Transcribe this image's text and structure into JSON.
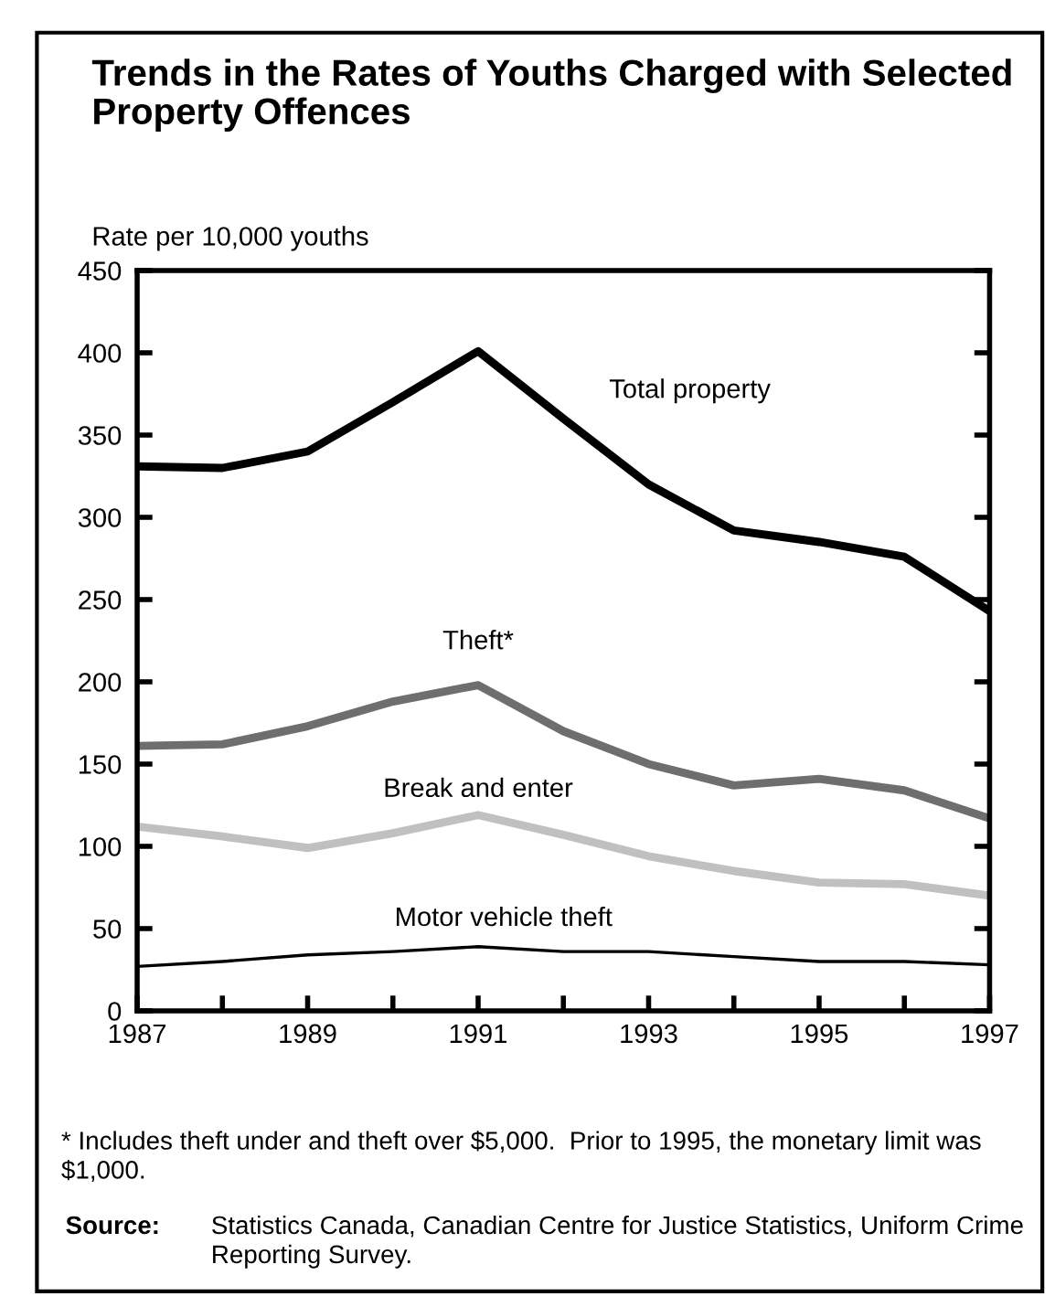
{
  "chart_data": {
    "type": "line",
    "title": "Trends in the Rates of Youths Charged with Selected Property Offences",
    "ylabel": "Rate per 10,000 youths",
    "x": [
      1987,
      1988,
      1989,
      1990,
      1991,
      1992,
      1993,
      1994,
      1995,
      1996,
      1997
    ],
    "series": [
      {
        "name": "Total property",
        "color": "#000000",
        "values": [
          331,
          330,
          340,
          370,
          401,
          360,
          320,
          292,
          285,
          276,
          243
        ]
      },
      {
        "name": "Theft*",
        "color": "#6e6e6e",
        "values": [
          161,
          162,
          173,
          188,
          198,
          170,
          150,
          137,
          141,
          134,
          117
        ]
      },
      {
        "name": "Break and enter",
        "color": "#c0c0c0",
        "values": [
          112,
          106,
          99,
          108,
          119,
          107,
          94,
          85,
          78,
          77,
          70
        ]
      },
      {
        "name": "Motor vehicle theft",
        "color": "#000000",
        "values": [
          27,
          30,
          34,
          36,
          39,
          36,
          36,
          33,
          30,
          30,
          28
        ]
      }
    ],
    "xlim": [
      1987,
      1997
    ],
    "xticks": [
      1987,
      {
        "value": 1988,
        "label": null
      },
      1989,
      {
        "value": 1990,
        "label": null
      },
      1991,
      {
        "value": 1992,
        "label": null
      },
      1993,
      {
        "value": 1994,
        "label": null
      },
      1995,
      {
        "value": 1996,
        "label": null
      },
      1997
    ],
    "ylim": [
      0,
      450
    ],
    "yticks": [
      0,
      50,
      100,
      150,
      200,
      250,
      300,
      350,
      400,
      450
    ],
    "grid": false,
    "legend": false,
    "marker": "none",
    "line_style": "solid",
    "annotations": [
      "* Includes theft under and theft over $5,000.  Prior to 1995, the monetary limit was $1,000.",
      "Source:",
      "Statistics Canada, Canadian Centre for Justice Statistics, Uniform Crime Reporting Survey."
    ]
  }
}
